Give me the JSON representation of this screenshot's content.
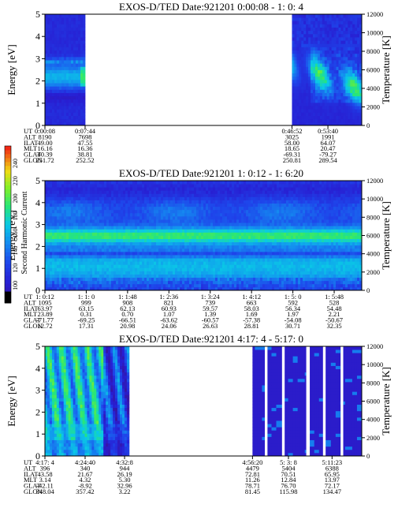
{
  "figure": {
    "colorbar_label": "Second Harmonic Current",
    "colorbar_ticks": [
      240,
      220,
      200,
      180,
      160,
      140,
      120,
      100
    ],
    "colors": {
      "background": "#3d18a8",
      "gap": "#ffffff",
      "axis": "#000000"
    }
  },
  "chart_data": [
    {
      "type": "heatmap",
      "title": "EXOS-D/TED   Date:921201  0:00:08 - 1: 0: 4",
      "ylabel": "Energy [eV]",
      "y2label": "Temperature [K]",
      "ylim": [
        0,
        5
      ],
      "y2lim": [
        0,
        12000
      ],
      "yticks": [
        0,
        1,
        2,
        3,
        4,
        5
      ],
      "y2ticks": [
        0,
        2000,
        4000,
        6000,
        8000,
        10000,
        12000
      ],
      "time_range": [
        "0:00:08",
        "1:00:04"
      ],
      "data_segments": [
        [
          "0:00:08",
          "0:07:44"
        ],
        [
          "0:46:52",
          "1:00:04"
        ]
      ],
      "orbit_table": {
        "row_labels": [
          "UT",
          "ALT",
          "ILAT",
          "MLT",
          "GLAT",
          "GLON"
        ],
        "columns": [
          {
            "values": [
              "0:00:08",
              "8190",
              "49.00",
              "16.16",
              "40.39",
              "251.72"
            ]
          },
          {
            "values": [
              "0:07:44",
              "7698",
              "47.55",
              "16.36",
              "38.81",
              "252.52"
            ]
          },
          {
            "values": [
              "0:46:52",
              "3025",
              "58.00",
              "18.65",
              "-69.31",
              "250.81"
            ]
          },
          {
            "values": [
              "0:53:40",
              "1991",
              "64.07",
              "20.47",
              "-79.27",
              "289.54"
            ]
          }
        ]
      }
    },
    {
      "type": "heatmap",
      "title": "EXOS-D/TED   Date:921201  1: 0:12 - 1: 6:20",
      "ylabel": "Energy [eV]",
      "y2label": "Temperature [K]",
      "ylim": [
        0,
        5
      ],
      "y2lim": [
        0,
        12000
      ],
      "yticks": [
        0,
        1,
        2,
        3,
        4,
        5
      ],
      "y2ticks": [
        0,
        2000,
        4000,
        6000,
        8000,
        10000,
        12000
      ],
      "time_range": [
        "1:00:12",
        "1:06:20"
      ],
      "data_segments": [
        [
          "1:00:12",
          "1:06:20"
        ]
      ],
      "orbit_table": {
        "row_labels": [
          "UT",
          "ALT",
          "ILAT",
          "MLT",
          "GLAT",
          "GLON"
        ],
        "columns": [
          {
            "values": [
              "1: 0:12",
              "1095",
              "63.97",
              "23.89",
              "-71.77",
              "12.72"
            ]
          },
          {
            "values": [
              "1: 1: 0",
              "999",
              "63.15",
              "0.31",
              "-69.25",
              "17.31"
            ]
          },
          {
            "values": [
              "1: 1:48",
              "908",
              "62.13",
              "0.70",
              "-66.51",
              "20.98"
            ]
          },
          {
            "values": [
              "1: 2:36",
              "821",
              "60.93",
              "1.07",
              "-63.62",
              "24.06"
            ]
          },
          {
            "values": [
              "1: 3:24",
              "739",
              "59.57",
              "1.39",
              "-60.57",
              "26.63"
            ]
          },
          {
            "values": [
              "1: 4:12",
              "663",
              "58.03",
              "1.69",
              "-57.38",
              "28.81"
            ]
          },
          {
            "values": [
              "1: 5: 0",
              "592",
              "56.34",
              "1.97",
              "-54.08",
              "30.71"
            ]
          },
          {
            "values": [
              "1: 5:48",
              "528",
              "54.48",
              "2.21",
              "-50.67",
              "32.35"
            ]
          }
        ]
      }
    },
    {
      "type": "heatmap",
      "title": "EXOS-D/TED   Date:921201  4:17: 4 - 5:17: 0",
      "ylabel": "Energy [eV]",
      "y2label": "Temperature [K]",
      "ylim": [
        0,
        5
      ],
      "y2lim": [
        0,
        12000
      ],
      "yticks": [
        0,
        1,
        2,
        3,
        4,
        5
      ],
      "y2ticks": [
        0,
        2000,
        4000,
        6000,
        8000,
        10000,
        12000
      ],
      "time_range": [
        "4:17:04",
        "5:17:00"
      ],
      "data_segments": [
        [
          "4:17:04",
          "4:33:00"
        ],
        [
          "4:56:20",
          "5:17:00"
        ]
      ],
      "orbit_table": {
        "row_labels": [
          "UT",
          "ALT",
          "ILAT",
          "MLT",
          "GLAT",
          "GLON"
        ],
        "columns": [
          {
            "values": [
              "4:17: 4",
              "396",
              "43.58",
              "3.14",
              "-42.11",
              "348.04"
            ]
          },
          {
            "values": [
              "4:24:40",
              "340",
              "21.67",
              "4.32",
              "-8.92",
              "357.42"
            ]
          },
          {
            "values": [
              "4:32:8",
              "944",
              "26.19",
              "5.30",
              "32.96",
              "3.22"
            ]
          },
          {
            "values": [
              "4:56:20",
              "4479",
              "72.81",
              "11.26",
              "78.71",
              "81.45"
            ]
          },
          {
            "values": [
              "5: 3: 8",
              "5404",
              "70.51",
              "12.84",
              "76.70",
              "115.98"
            ]
          },
          {
            "values": [
              "5:11:23",
              "6388",
              "65.95",
              "13.97",
              "72.17",
              "134.47"
            ]
          }
        ]
      }
    }
  ]
}
